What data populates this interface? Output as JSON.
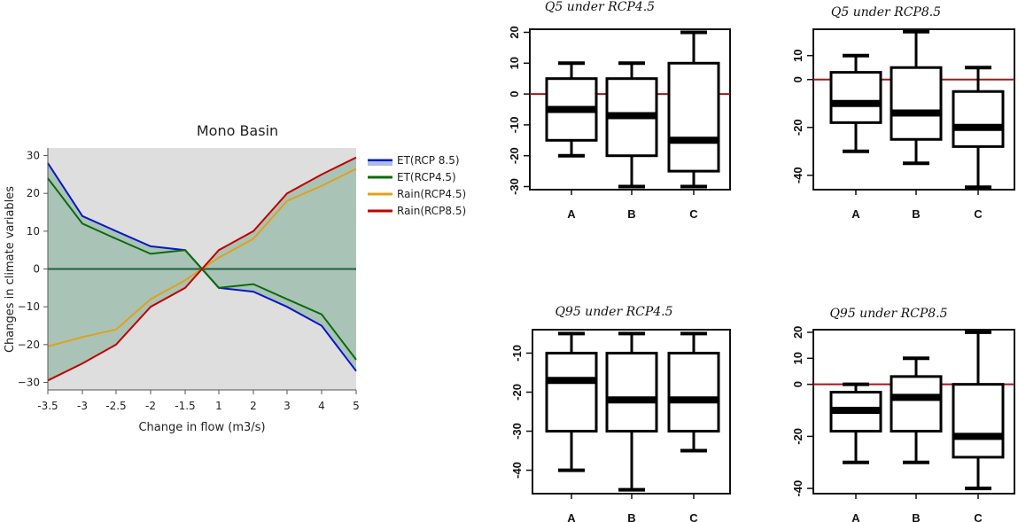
{
  "chart_data": [
    {
      "type": "line",
      "title": "Mono Basin",
      "xlabel": "Change in flow (m3/s)",
      "ylabel": "Changes in climate variables",
      "x_categories": [
        "-3.5",
        "-3",
        "-2.5",
        "-2",
        "-1.5",
        "1",
        "2",
        "3",
        "4",
        "5"
      ],
      "ylim": [
        -32,
        32
      ],
      "yticks": [
        -30,
        -20,
        -10,
        0,
        10,
        20,
        30
      ],
      "grid": false,
      "legend_position": "right",
      "zero_line_color": "#1f5e3f",
      "band_fill_color": "#a9c4b6",
      "plot_bg_color": "#dedede",
      "series": [
        {
          "name": "ET(RCP 8.5)",
          "color": "#0a16c9",
          "values": [
            28,
            14,
            10,
            6,
            5,
            -5,
            -6,
            -10,
            -15,
            -27
          ]
        },
        {
          "name": "ET(RCP4.5)",
          "color": "#0b6b0b",
          "values": [
            24,
            12,
            8,
            4,
            5,
            -5,
            -4,
            -8,
            -12,
            -24
          ]
        },
        {
          "name": "Rain(RCP4.5)",
          "color": "#e0a020",
          "values": [
            -20.5,
            -18,
            -16,
            -8,
            -3,
            3,
            8,
            18,
            22,
            26.5
          ]
        },
        {
          "name": "Rain(RCP8.5)",
          "color": "#c00000",
          "values": [
            -29.5,
            -25,
            -20,
            -10,
            -5,
            5,
            10,
            20,
            25,
            29.5
          ]
        }
      ],
      "crossing_x": 0
    },
    {
      "type": "boxplot",
      "title": "Q5 under RCP4.5",
      "categories": [
        "A",
        "B",
        "C"
      ],
      "yticks": [
        -30,
        -20,
        -10,
        0,
        10,
        20
      ],
      "ylim": [
        -31,
        21
      ],
      "reference_line": 0,
      "reference_color": "#a01818",
      "boxes": [
        {
          "min": -20,
          "q1": -15,
          "median": -5,
          "q3": 5,
          "max": 10
        },
        {
          "min": -30,
          "q1": -20,
          "median": -7,
          "q3": 5,
          "max": 10
        },
        {
          "min": -30,
          "q1": -25,
          "median": -15,
          "q3": 10,
          "max": 20
        }
      ]
    },
    {
      "type": "boxplot",
      "title": "Q5 under RCP8.5",
      "categories": [
        "A",
        "B",
        "C"
      ],
      "yticks": [
        -40,
        -20,
        0,
        10
      ],
      "ylim": [
        -46,
        21
      ],
      "reference_line": 0,
      "reference_color": "#a01818",
      "boxes": [
        {
          "min": -30,
          "q1": -18,
          "median": -10,
          "q3": 3,
          "max": 10
        },
        {
          "min": -35,
          "q1": -25,
          "median": -14,
          "q3": 5,
          "max": 20
        },
        {
          "min": -45,
          "q1": -28,
          "median": -20,
          "q3": -5,
          "max": 5
        }
      ]
    },
    {
      "type": "boxplot",
      "title": "Q95 under RCP4.5",
      "categories": [
        "A",
        "B",
        "C"
      ],
      "yticks": [
        -40,
        -30,
        -20,
        -10
      ],
      "ylim": [
        -46,
        -4
      ],
      "boxes": [
        {
          "min": -40,
          "q1": -30,
          "median": -17,
          "q3": -10,
          "max": -5
        },
        {
          "min": -45,
          "q1": -30,
          "median": -22,
          "q3": -10,
          "max": -5
        },
        {
          "min": -35,
          "q1": -30,
          "median": -22,
          "q3": -10,
          "max": -5
        }
      ]
    },
    {
      "type": "boxplot",
      "title": "Q95 under RCP8.5",
      "categories": [
        "A",
        "B",
        "C"
      ],
      "yticks": [
        -40,
        -20,
        0,
        10,
        20
      ],
      "ylim": [
        -42,
        21
      ],
      "reference_line": 0,
      "reference_color": "#a01818",
      "boxes": [
        {
          "min": -30,
          "q1": -18,
          "median": -10,
          "q3": -3,
          "max": 0
        },
        {
          "min": -30,
          "q1": -18,
          "median": -5,
          "q3": 3,
          "max": 10
        },
        {
          "min": -40,
          "q1": -28,
          "median": -20,
          "q3": 0,
          "max": 20
        }
      ]
    }
  ]
}
